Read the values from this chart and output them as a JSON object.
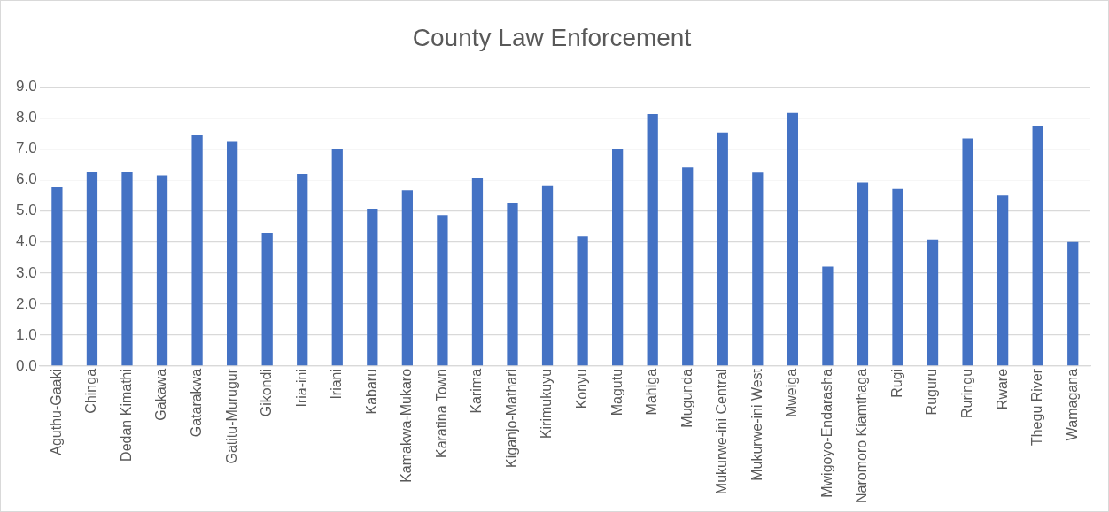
{
  "chart_data": {
    "type": "bar",
    "title": "County Law Enforcement",
    "categories": [
      "Aguthu-Gaaki",
      "Chinga",
      "Dedan Kimathi",
      "Gakawa",
      "Gatarakwa",
      "Gatitu-Murugur",
      "Gikondi",
      "Iria-ini",
      "Iriani",
      "Kabaru",
      "Kamakwa-Mukaro",
      "Karatina Town",
      "Karima",
      "Kiganjo-Mathari",
      "Kirimukuyu",
      "Konyu",
      "Magutu",
      "Mahiga",
      "Mugunda",
      "Mukurwe-ini Central",
      "Mukurwe-ini West",
      "Mweiga",
      "Mwigoyo-Endarasha",
      "Naromoro Kiamthaga",
      "Rugi",
      "Ruguru",
      "Ruringu",
      "Rware",
      "Thegu River",
      "Wamagana"
    ],
    "values": [
      5.78,
      6.28,
      6.28,
      6.15,
      7.45,
      7.23,
      4.29,
      6.19,
      7.0,
      5.08,
      5.67,
      4.87,
      6.08,
      5.26,
      5.83,
      4.19,
      7.01,
      8.13,
      6.41,
      7.54,
      6.24,
      8.17,
      3.21,
      5.92,
      5.71,
      4.09,
      7.35,
      5.5,
      7.74,
      4.0
    ],
    "color": "#4472c4",
    "ylim": [
      0,
      9
    ],
    "yticks": [
      {
        "value": 0,
        "label": "0.0"
      },
      {
        "value": 1,
        "label": "1.0"
      },
      {
        "value": 2,
        "label": "2.0"
      },
      {
        "value": 3,
        "label": "3.0"
      },
      {
        "value": 4,
        "label": "4.0"
      },
      {
        "value": 5,
        "label": "5.0"
      },
      {
        "value": 6,
        "label": "6.0"
      },
      {
        "value": 7,
        "label": "7.0"
      },
      {
        "value": 8,
        "label": "8.0"
      },
      {
        "value": 9,
        "label": "9.0"
      }
    ],
    "grid": "y",
    "legend": false
  }
}
